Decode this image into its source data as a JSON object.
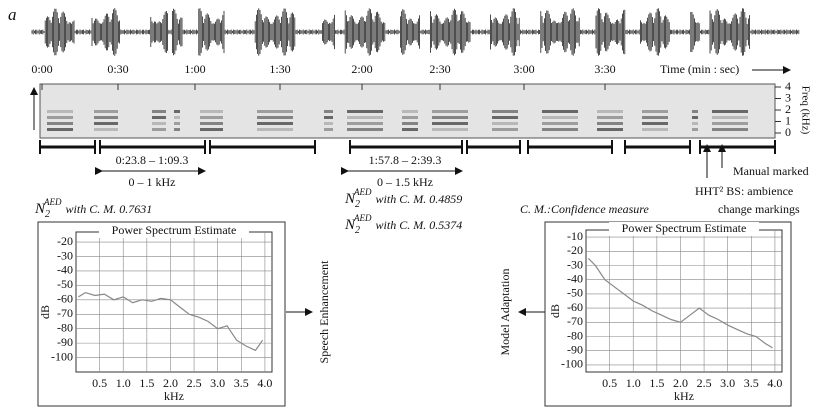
{
  "panel_label": "a",
  "timeline": {
    "ticks": [
      "0:00",
      "0:30",
      "1:00",
      "1:30",
      "2:00",
      "2:30",
      "3:00",
      "3:30"
    ],
    "axis_label": "Time (min : sec)"
  },
  "spectrogram": {
    "freq_label": "Freq (kHz)",
    "freq_ticks": [
      0,
      1,
      2,
      3,
      4
    ]
  },
  "segments": [
    {
      "range": "0:23.8 – 1:09.3",
      "band": "0 – 1 kHz"
    },
    {
      "range": "1:57.8 – 2:39.3",
      "band": "0 – 1.5 kHz"
    }
  ],
  "markers": {
    "manual": "Manual marked",
    "hht_1": "HHT² BS: ambience",
    "hht_2": "change markings"
  },
  "scores": [
    {
      "symbol": "N",
      "sub": "2",
      "sup": "AED",
      "text": "with C. M. 0.7631"
    },
    {
      "symbol": "N",
      "sub": "2",
      "sup": "AED",
      "text": "with C. M. 0.4859"
    },
    {
      "symbol": "N",
      "sub": "2",
      "sup": "AED",
      "text": "with C. M. 0.5374"
    }
  ],
  "confidence_note": "C. M.:Confidence measure",
  "actions": {
    "left": "Speech Enhancement",
    "right": "Model Adaptation"
  },
  "chart_data": [
    {
      "type": "line",
      "title": "Power Spectrum Estimate",
      "x_label": "kHz",
      "y_label": "dB",
      "grid": true,
      "color": "#888888",
      "x": [
        0.05,
        0.2,
        0.4,
        0.6,
        0.8,
        1.0,
        1.2,
        1.4,
        1.6,
        1.8,
        2.0,
        2.2,
        2.4,
        2.6,
        2.8,
        3.0,
        3.2,
        3.4,
        3.6,
        3.8,
        3.95
      ],
      "values": [
        -58,
        -55,
        -57,
        -56,
        -60,
        -58,
        -62,
        -60,
        -61,
        -59,
        -60,
        -65,
        -70,
        -72,
        -75,
        -80,
        -78,
        -88,
        -92,
        -95,
        -88
      ],
      "xlim": [
        0,
        4.15
      ],
      "xticks": [
        0.5,
        {
          "value": 1,
          "label": "1.0"
        },
        1.5,
        {
          "value": 2,
          "label": "2.0"
        },
        2.5,
        {
          "value": 3,
          "label": "3.0"
        },
        3.5,
        {
          "value": 4,
          "label": "4.0"
        }
      ],
      "ylim": [
        -110,
        -13
      ],
      "yticks": [
        -20,
        -30,
        -40,
        -50,
        -60,
        -70,
        -80,
        -90,
        -100
      ]
    },
    {
      "type": "line",
      "title": "Power Spectrum Estimate",
      "x_label": "kHz",
      "y_label": "dB",
      "grid": true,
      "color": "#888888",
      "x": [
        0.05,
        0.2,
        0.4,
        0.6,
        0.8,
        1.0,
        1.2,
        1.4,
        1.6,
        1.8,
        2.0,
        2.2,
        2.4,
        2.6,
        2.8,
        3.0,
        3.2,
        3.4,
        3.6,
        3.8,
        3.95
      ],
      "values": [
        -25,
        -30,
        -40,
        -45,
        -50,
        -55,
        -58,
        -62,
        -65,
        -68,
        -70,
        -65,
        -60,
        -65,
        -68,
        -72,
        -75,
        -78,
        -80,
        -85,
        -88
      ],
      "xlim": [
        0,
        4.15
      ],
      "xticks": [
        0.5,
        {
          "value": 1,
          "label": "1.0"
        },
        1.5,
        {
          "value": 2,
          "label": "2.0"
        },
        2.5,
        {
          "value": 3,
          "label": "3.0"
        },
        3.5,
        {
          "value": 4,
          "label": "4.0"
        }
      ],
      "ylim": [
        -105,
        -5
      ],
      "yticks": [
        -10,
        -20,
        -30,
        -40,
        -50,
        -60,
        -70,
        -80,
        -90,
        -100
      ]
    }
  ]
}
